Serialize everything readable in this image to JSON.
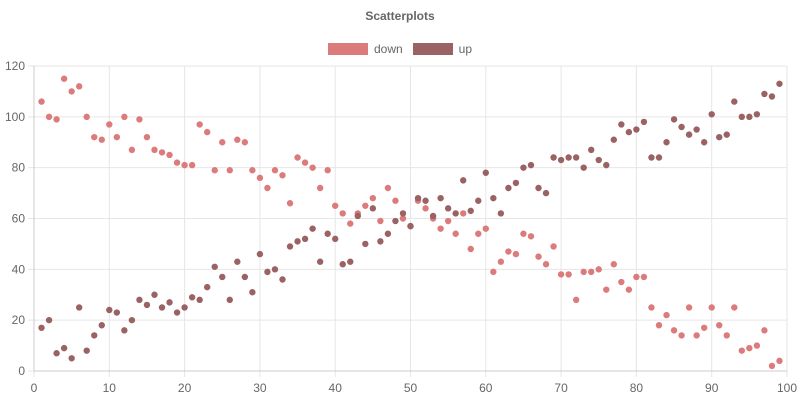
{
  "chart_data": {
    "type": "scatter",
    "title": "Scatterplots",
    "xlabel": "",
    "ylabel": "",
    "xlim": [
      0,
      100
    ],
    "ylim": [
      0,
      120
    ],
    "x_ticks": [
      0,
      10,
      20,
      30,
      40,
      50,
      60,
      70,
      80,
      90,
      100
    ],
    "y_ticks": [
      0,
      20,
      40,
      60,
      80,
      100,
      120
    ],
    "grid": true,
    "legend_position": "top-center",
    "series": [
      {
        "name": "down",
        "color": "#dc7b7b",
        "points": [
          [
            1,
            106
          ],
          [
            2,
            100
          ],
          [
            3,
            99
          ],
          [
            4,
            115
          ],
          [
            5,
            110
          ],
          [
            6,
            112
          ],
          [
            7,
            100
          ],
          [
            8,
            92
          ],
          [
            9,
            91
          ],
          [
            10,
            97
          ],
          [
            11,
            92
          ],
          [
            12,
            100
          ],
          [
            13,
            87
          ],
          [
            14,
            99
          ],
          [
            15,
            92
          ],
          [
            16,
            87
          ],
          [
            17,
            86
          ],
          [
            18,
            85
          ],
          [
            19,
            82
          ],
          [
            20,
            81
          ],
          [
            21,
            81
          ],
          [
            22,
            97
          ],
          [
            23,
            94
          ],
          [
            24,
            79
          ],
          [
            25,
            90
          ],
          [
            26,
            79
          ],
          [
            27,
            91
          ],
          [
            28,
            90
          ],
          [
            29,
            79
          ],
          [
            30,
            76
          ],
          [
            31,
            72
          ],
          [
            32,
            79
          ],
          [
            33,
            77
          ],
          [
            34,
            66
          ],
          [
            35,
            84
          ],
          [
            36,
            82
          ],
          [
            37,
            80
          ],
          [
            38,
            72
          ],
          [
            39,
            79
          ],
          [
            40,
            65
          ],
          [
            41,
            62
          ],
          [
            42,
            58
          ],
          [
            43,
            62
          ],
          [
            44,
            65
          ],
          [
            45,
            68
          ],
          [
            46,
            59
          ],
          [
            47,
            72
          ],
          [
            48,
            67
          ],
          [
            49,
            60
          ],
          [
            50,
            57
          ],
          [
            51,
            67
          ],
          [
            52,
            64
          ],
          [
            53,
            60
          ],
          [
            54,
            56
          ],
          [
            55,
            59
          ],
          [
            56,
            54
          ],
          [
            57,
            62
          ],
          [
            58,
            48
          ],
          [
            59,
            54
          ],
          [
            60,
            56
          ],
          [
            61,
            39
          ],
          [
            62,
            43
          ],
          [
            63,
            47
          ],
          [
            64,
            46
          ],
          [
            65,
            54
          ],
          [
            66,
            53
          ],
          [
            67,
            45
          ],
          [
            68,
            42
          ],
          [
            69,
            49
          ],
          [
            70,
            38
          ],
          [
            71,
            38
          ],
          [
            72,
            28
          ],
          [
            73,
            39
          ],
          [
            74,
            39
          ],
          [
            75,
            40
          ],
          [
            76,
            32
          ],
          [
            77,
            42
          ],
          [
            78,
            35
          ],
          [
            79,
            32
          ],
          [
            80,
            37
          ],
          [
            81,
            37
          ],
          [
            82,
            25
          ],
          [
            83,
            18
          ],
          [
            84,
            22
          ],
          [
            85,
            16
          ],
          [
            86,
            14
          ],
          [
            87,
            25
          ],
          [
            88,
            14
          ],
          [
            89,
            17
          ],
          [
            90,
            25
          ],
          [
            91,
            18
          ],
          [
            92,
            14
          ],
          [
            93,
            25
          ],
          [
            94,
            8
          ],
          [
            95,
            9
          ],
          [
            96,
            10
          ],
          [
            97,
            16
          ],
          [
            98,
            2
          ],
          [
            99,
            4
          ]
        ]
      },
      {
        "name": "up",
        "color": "#9a6262",
        "points": [
          [
            1,
            17
          ],
          [
            2,
            20
          ],
          [
            3,
            7
          ],
          [
            4,
            9
          ],
          [
            5,
            5
          ],
          [
            6,
            25
          ],
          [
            7,
            8
          ],
          [
            8,
            14
          ],
          [
            9,
            18
          ],
          [
            10,
            24
          ],
          [
            11,
            23
          ],
          [
            12,
            16
          ],
          [
            13,
            20
          ],
          [
            14,
            28
          ],
          [
            15,
            26
          ],
          [
            16,
            30
          ],
          [
            17,
            25
          ],
          [
            18,
            27
          ],
          [
            19,
            23
          ],
          [
            20,
            25
          ],
          [
            21,
            29
          ],
          [
            22,
            28
          ],
          [
            23,
            33
          ],
          [
            24,
            41
          ],
          [
            25,
            37
          ],
          [
            26,
            28
          ],
          [
            27,
            43
          ],
          [
            28,
            37
          ],
          [
            29,
            31
          ],
          [
            30,
            46
          ],
          [
            31,
            39
          ],
          [
            32,
            40
          ],
          [
            33,
            36
          ],
          [
            34,
            49
          ],
          [
            35,
            51
          ],
          [
            36,
            52
          ],
          [
            37,
            56
          ],
          [
            38,
            43
          ],
          [
            39,
            54
          ],
          [
            40,
            52
          ],
          [
            41,
            42
          ],
          [
            42,
            43
          ],
          [
            43,
            61
          ],
          [
            44,
            50
          ],
          [
            45,
            64
          ],
          [
            46,
            51
          ],
          [
            47,
            54
          ],
          [
            48,
            59
          ],
          [
            49,
            62
          ],
          [
            50,
            57
          ],
          [
            51,
            68
          ],
          [
            52,
            67
          ],
          [
            53,
            61
          ],
          [
            54,
            68
          ],
          [
            55,
            64
          ],
          [
            56,
            62
          ],
          [
            57,
            75
          ],
          [
            58,
            63
          ],
          [
            59,
            67
          ],
          [
            60,
            78
          ],
          [
            61,
            68
          ],
          [
            62,
            62
          ],
          [
            63,
            72
          ],
          [
            64,
            74
          ],
          [
            65,
            80
          ],
          [
            66,
            81
          ],
          [
            67,
            72
          ],
          [
            68,
            70
          ],
          [
            69,
            84
          ],
          [
            70,
            83
          ],
          [
            71,
            84
          ],
          [
            72,
            84
          ],
          [
            73,
            80
          ],
          [
            74,
            87
          ],
          [
            75,
            83
          ],
          [
            76,
            81
          ],
          [
            77,
            91
          ],
          [
            78,
            97
          ],
          [
            79,
            94
          ],
          [
            80,
            95
          ],
          [
            81,
            98
          ],
          [
            82,
            84
          ],
          [
            83,
            84
          ],
          [
            84,
            90
          ],
          [
            85,
            99
          ],
          [
            86,
            96
          ],
          [
            87,
            93
          ],
          [
            88,
            95
          ],
          [
            89,
            90
          ],
          [
            90,
            101
          ],
          [
            91,
            92
          ],
          [
            92,
            93
          ],
          [
            93,
            106
          ],
          [
            94,
            100
          ],
          [
            95,
            100
          ],
          [
            96,
            101
          ],
          [
            97,
            109
          ],
          [
            98,
            108
          ],
          [
            99,
            113
          ]
        ]
      }
    ]
  }
}
